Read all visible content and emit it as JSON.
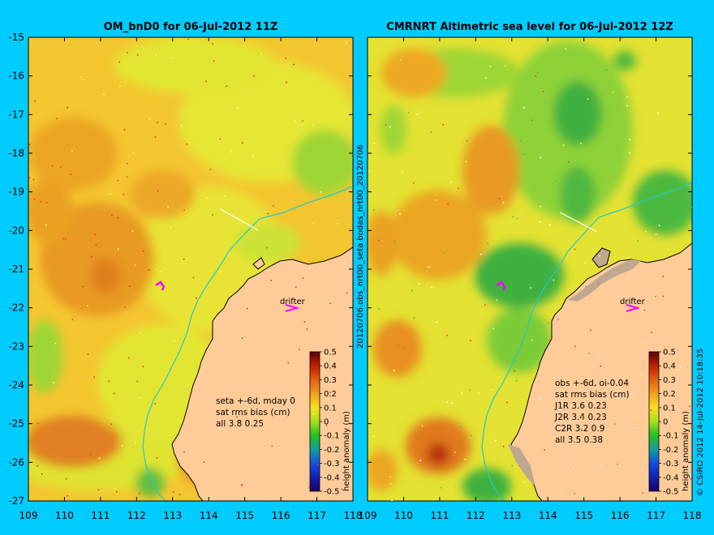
{
  "left_panel": {
    "title": "OM_bnD0 for 06-Jul-2012 11Z",
    "drifter_label": "drifter",
    "stats": [
      "seta +-6d, mday 0",
      "sat rms bias (cm)",
      "all 3.8 0.25"
    ],
    "colorbar": {
      "label": "height anomaly (m)",
      "ticks": [
        "0.5",
        "0.4",
        "0.3",
        "0.2",
        "0.1",
        "0",
        "-0.1",
        "-0.2",
        "-0.3",
        "-0.4",
        "-0.5"
      ]
    }
  },
  "right_panel": {
    "title": "CMRNRT Altimetric sea level  for 06-Jul-2012 12Z",
    "drifter_label": "drifter",
    "stats": [
      "obs +-6d, oi-0.04",
      "sat rms bias (cm)",
      "J1R   3.6 0.23",
      "J2R   3.4 0.23",
      "C2R   3.2 0.9",
      "all 3.5 0.38"
    ],
    "colorbar": {
      "label": "height anomaly (m)",
      "ticks": [
        "0.5",
        "0.4",
        "0.3",
        "0.2",
        "0.1",
        "0",
        "-0.1",
        "-0.2",
        "-0.3",
        "-0.4",
        "-0.5"
      ]
    }
  },
  "y_axis_ticks": [
    "-15",
    "-16",
    "-17",
    "-18",
    "-19",
    "-20",
    "-21",
    "-22",
    "-23",
    "-24",
    "-25",
    "-26",
    "-27"
  ],
  "x_axis_ticks": [
    "109",
    "110",
    "111",
    "112",
    "113",
    "114",
    "115",
    "116",
    "117",
    "118"
  ],
  "middle_vertical_text": "20120706.obs_nrt00_seta      bodas_nrt00_20120706",
  "copyright": "© CSIRO 2012   14-Jul-2012 10:18:35",
  "colors": {
    "background": "#00ccff",
    "land": "#ffcc99",
    "coast_line": "#000000",
    "shelf_line": "#22c8c8",
    "scale_top": "#5a0000",
    "scale_bottom": "#1a0066"
  }
}
